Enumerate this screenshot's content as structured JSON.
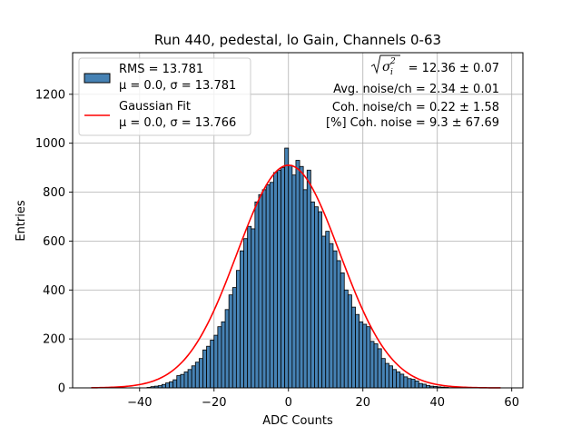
{
  "chart_data": {
    "type": "bar",
    "title": "Run 440, pedestal, lo Gain, Channels 0-63",
    "xlabel": "ADC Counts",
    "ylabel": "Entries",
    "xlim": [
      -58,
      63
    ],
    "ylim": [
      0,
      1370
    ],
    "grid": true,
    "x_ticks": [
      -40,
      -20,
      0,
      20,
      40,
      60
    ],
    "x_tick_labels": [
      "−40",
      "−20",
      "0",
      "20",
      "40",
      "60"
    ],
    "y_ticks": [
      0,
      200,
      400,
      600,
      800,
      1000,
      1200
    ],
    "y_tick_labels": [
      "0",
      "200",
      "400",
      "600",
      "800",
      "1000",
      "1200"
    ],
    "bin_start": -53,
    "bin_width": 1,
    "histogram_values": [
      0,
      0,
      0,
      0,
      0,
      0,
      0,
      0,
      0,
      0,
      0,
      0,
      0,
      0,
      0,
      2,
      5,
      7,
      9,
      14,
      20,
      25,
      33,
      50,
      55,
      65,
      75,
      90,
      105,
      120,
      155,
      170,
      195,
      215,
      250,
      270,
      320,
      380,
      410,
      480,
      560,
      610,
      660,
      650,
      760,
      790,
      810,
      830,
      840,
      880,
      890,
      900,
      980,
      910,
      870,
      930,
      905,
      810,
      890,
      760,
      740,
      720,
      620,
      640,
      590,
      560,
      520,
      470,
      400,
      380,
      330,
      300,
      270,
      260,
      250,
      190,
      180,
      160,
      120,
      100,
      90,
      75,
      65,
      56,
      45,
      38,
      35,
      28,
      18,
      15,
      10,
      7,
      6,
      4,
      3,
      2,
      1,
      1,
      0,
      0,
      0,
      0,
      0,
      0,
      0,
      0,
      0,
      0,
      0,
      0
    ],
    "fit": {
      "type": "gaussian",
      "mu": 0.0,
      "sigma": 13.766,
      "amplitude": 910,
      "x_range": [
        -53,
        57
      ]
    },
    "series": [
      {
        "name": "RMS = 13.781",
        "sub": "μ = 0.0, σ = 13.781",
        "color": "#4682b4",
        "kind": "histogram"
      },
      {
        "name": "Gaussian Fit",
        "sub": "μ = 0.0, σ = 13.766",
        "color": "#ff0000",
        "kind": "line"
      }
    ],
    "legend_position": "top-left",
    "annotations": [
      "= 12.36 ± 0.07",
      "Avg. noise/ch = 2.34 ± 0.01",
      "Coh. noise/ch = 0.22 ± 1.58",
      "[%] Coh. noise = 9.3 ± 67.69"
    ]
  }
}
